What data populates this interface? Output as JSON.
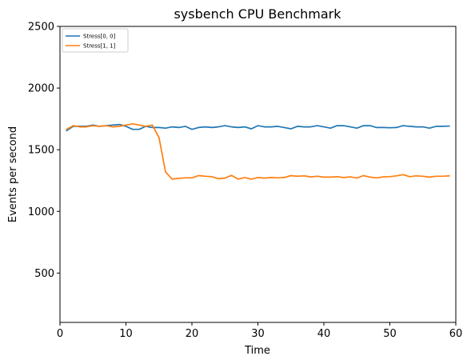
{
  "chart_data": {
    "type": "line",
    "title": "sysbench CPU Benchmark",
    "xlabel": "Time",
    "ylabel": "Events per second",
    "xlim": [
      0,
      60
    ],
    "ylim": [
      100,
      2500
    ],
    "xticks": [
      0,
      10,
      20,
      30,
      40,
      50,
      60
    ],
    "yticks": [
      500,
      1000,
      1500,
      2000,
      2500
    ],
    "grid": false,
    "legend_position": "top-left",
    "series": [
      {
        "name": "Stress[0, 0]",
        "color": "#1f77b4",
        "x": [
          1,
          2,
          3,
          4,
          5,
          6,
          7,
          8,
          9,
          10,
          11,
          12,
          13,
          14,
          15,
          16,
          17,
          18,
          19,
          20,
          21,
          22,
          23,
          24,
          25,
          26,
          27,
          28,
          29,
          30,
          31,
          32,
          33,
          34,
          35,
          36,
          37,
          38,
          39,
          40,
          41,
          42,
          43,
          44,
          45,
          46,
          47,
          48,
          49,
          50,
          51,
          52,
          53,
          54,
          55,
          56,
          57,
          58,
          59
        ],
        "y": [
          1655,
          1690,
          1690,
          1690,
          1700,
          1690,
          1695,
          1700,
          1705,
          1690,
          1665,
          1665,
          1690,
          1680,
          1680,
          1675,
          1685,
          1680,
          1690,
          1665,
          1680,
          1685,
          1680,
          1685,
          1695,
          1685,
          1680,
          1685,
          1670,
          1695,
          1685,
          1685,
          1690,
          1680,
          1670,
          1690,
          1685,
          1685,
          1695,
          1685,
          1675,
          1695,
          1695,
          1685,
          1675,
          1695,
          1695,
          1680,
          1680,
          1678,
          1680,
          1695,
          1690,
          1685,
          1685,
          1675,
          1690,
          1690,
          1692
        ]
      },
      {
        "name": "Stress[1, 1]",
        "color": "#ff7f0e",
        "x": [
          1,
          2,
          3,
          4,
          5,
          6,
          7,
          8,
          9,
          10,
          11,
          12,
          13,
          14,
          15,
          16,
          17,
          18,
          19,
          20,
          21,
          22,
          23,
          24,
          25,
          26,
          27,
          28,
          29,
          30,
          31,
          32,
          33,
          34,
          35,
          36,
          37,
          38,
          39,
          40,
          41,
          42,
          43,
          44,
          45,
          46,
          47,
          48,
          49,
          50,
          51,
          52,
          53,
          54,
          55,
          56,
          57,
          58,
          59
        ],
        "y": [
          1665,
          1695,
          1685,
          1685,
          1695,
          1690,
          1695,
          1685,
          1690,
          1700,
          1710,
          1700,
          1690,
          1700,
          1600,
          1320,
          1262,
          1268,
          1272,
          1272,
          1290,
          1285,
          1282,
          1265,
          1270,
          1292,
          1262,
          1275,
          1262,
          1275,
          1270,
          1275,
          1272,
          1275,
          1290,
          1285,
          1288,
          1280,
          1285,
          1278,
          1278,
          1282,
          1275,
          1280,
          1270,
          1290,
          1278,
          1272,
          1280,
          1282,
          1288,
          1298,
          1282,
          1288,
          1285,
          1278,
          1285,
          1285,
          1288
        ]
      }
    ]
  }
}
